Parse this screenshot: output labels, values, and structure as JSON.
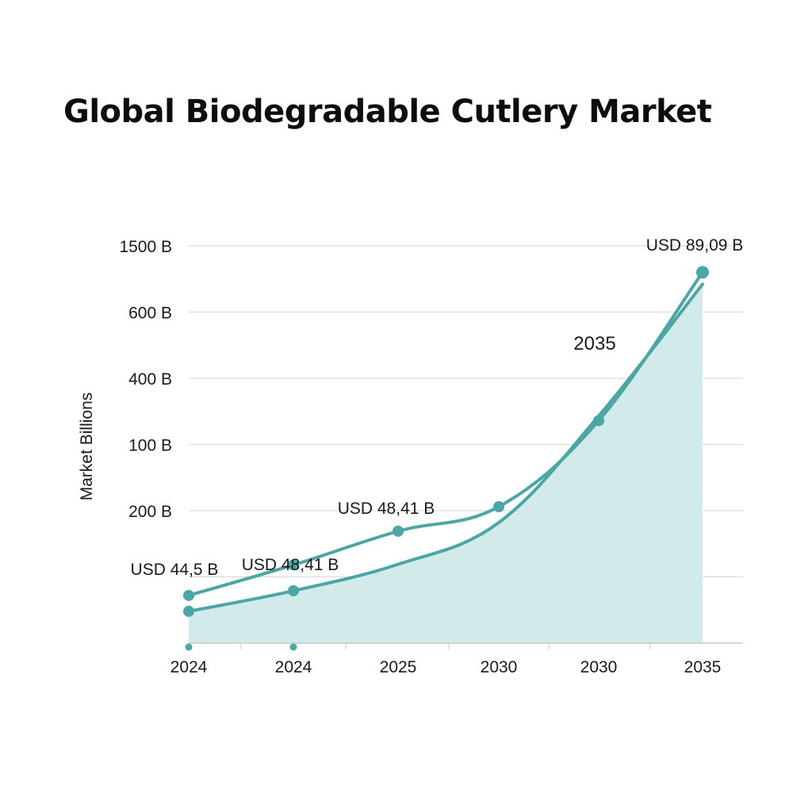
{
  "chart_data": {
    "type": "area",
    "title": "Global Biodegradable Cutlery Market",
    "ylabel": "Market Billions",
    "xlabel": "",
    "y_tick_labels": [
      "1500 B",
      "600 B",
      "400 B",
      "100 B",
      "200 B",
      ""
    ],
    "x_tick_labels": [
      "2024",
      "2024",
      "2025",
      "2030",
      "2030",
      "2035"
    ],
    "grid": true,
    "colors": {
      "line": "#4ba6a6",
      "area": "#d3eaea",
      "grid": "#d6d6d6",
      "axis": "#c8c8c8"
    },
    "series": [
      {
        "style": "line-with-markers",
        "values": [
          0.72,
          1.18,
          1.69,
          2.06,
          3.36,
          5.6
        ]
      },
      {
        "style": "area",
        "values": [
          0.48,
          0.79,
          1.19,
          1.82,
          3.43,
          5.42
        ]
      }
    ],
    "extra_points": [
      {
        "series": 1,
        "x_index": 0
      },
      {
        "series": 1,
        "x_index": 1
      }
    ],
    "baseline_markers": [
      0,
      1
    ],
    "annotations": [
      {
        "text": "USD 44,5 B",
        "x_index": 0,
        "y": 1.09
      },
      {
        "text": "USD 48,41 B",
        "x_index": 1,
        "y": 1.17
      },
      {
        "text": "USD 48,41 B",
        "x_index": 2,
        "y": 2.03
      },
      {
        "text": "2035",
        "x_index": 4,
        "y": 4.55,
        "size": "large"
      },
      {
        "text": "USD 89,09 B",
        "x_index": 5,
        "y": 6.05
      }
    ]
  }
}
